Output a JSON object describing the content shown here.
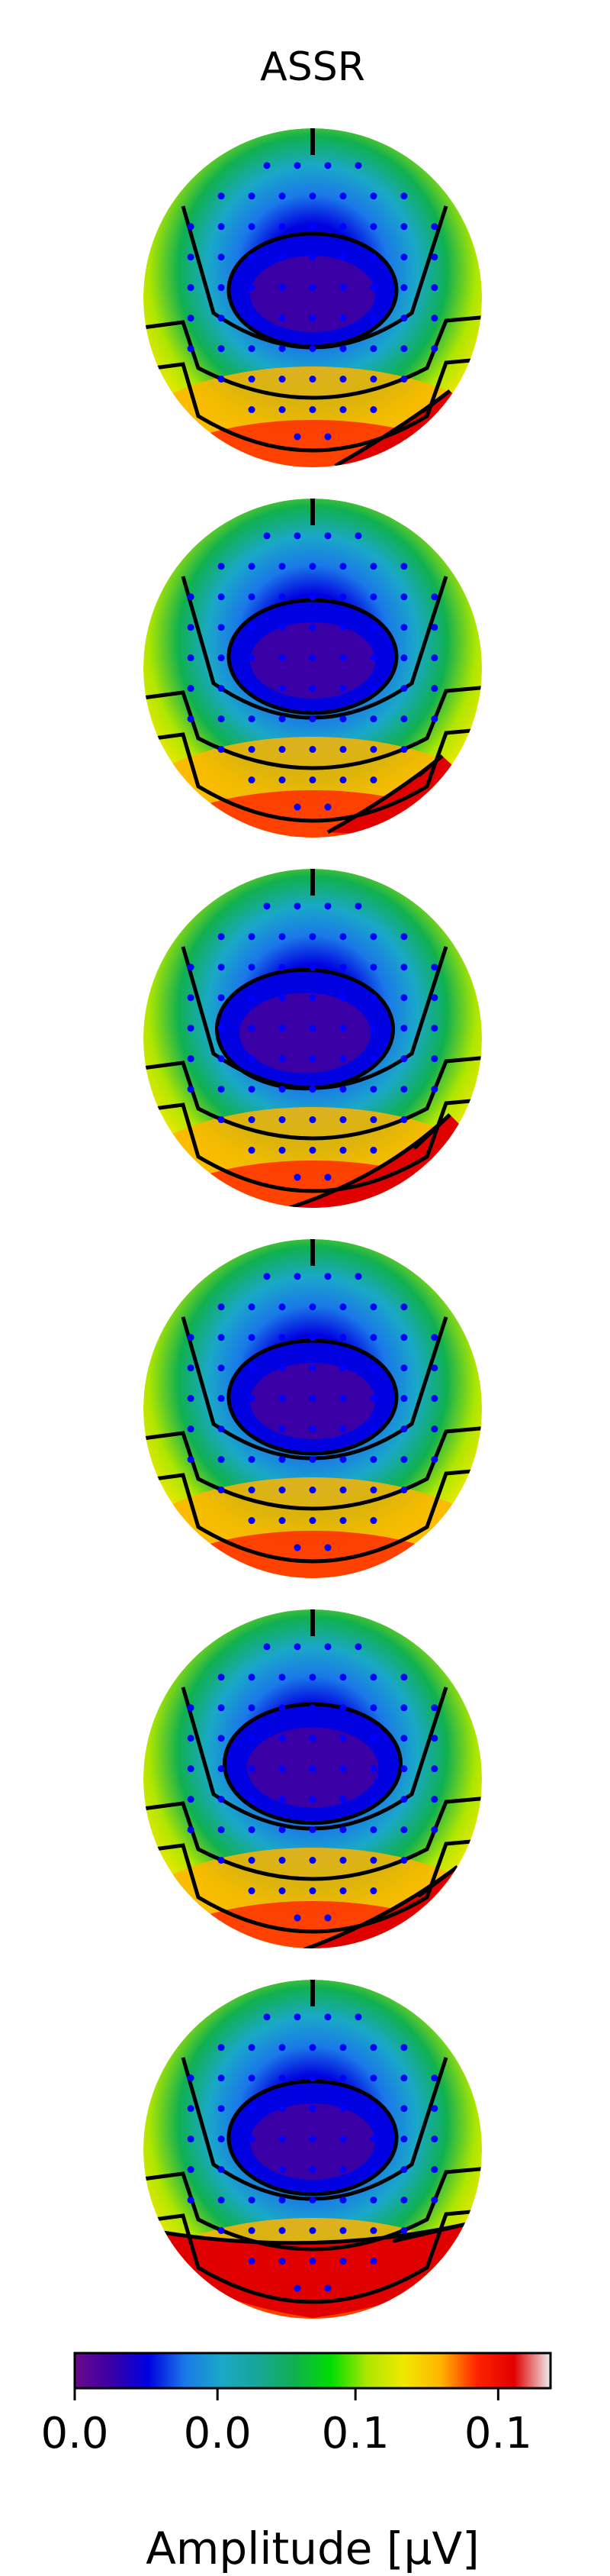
{
  "chart_data": {
    "type": "heatmap",
    "subtype": "eeg-scalp-topography",
    "title": "ASSR",
    "panel_count": 6,
    "colormap": "nipy_spectral",
    "colormap_stops": [
      "#6a0a8a",
      "#3a00a6",
      "#0000e0",
      "#1a78e8",
      "#1aa8c8",
      "#18a698",
      "#10b050",
      "#00dc00",
      "#aee600",
      "#f0e800",
      "#ffb400",
      "#ff2200",
      "#e00000",
      "#eeeeee"
    ],
    "colorbar": {
      "label": "Amplitude [μV]",
      "tick_labels": [
        "0.0",
        "0.0",
        "0.1",
        "0.1"
      ]
    },
    "sensor_color": "#0000ff",
    "contour_color": "#000000",
    "panels": [
      {
        "amplitude_pattern": "minimum at centre, maximum toward lower-right edge"
      },
      {
        "amplitude_pattern": "minimum at centre, maximum toward lower-right edge"
      },
      {
        "amplitude_pattern": "minimum at centre, maximum along lower-right edge"
      },
      {
        "amplitude_pattern": "minimum at centre, maximum at lower-right edge"
      },
      {
        "amplitude_pattern": "minimum at centre, maximum along lower-right edge"
      },
      {
        "amplitude_pattern": "minimum at centre, maximum along the lower edge"
      }
    ]
  }
}
